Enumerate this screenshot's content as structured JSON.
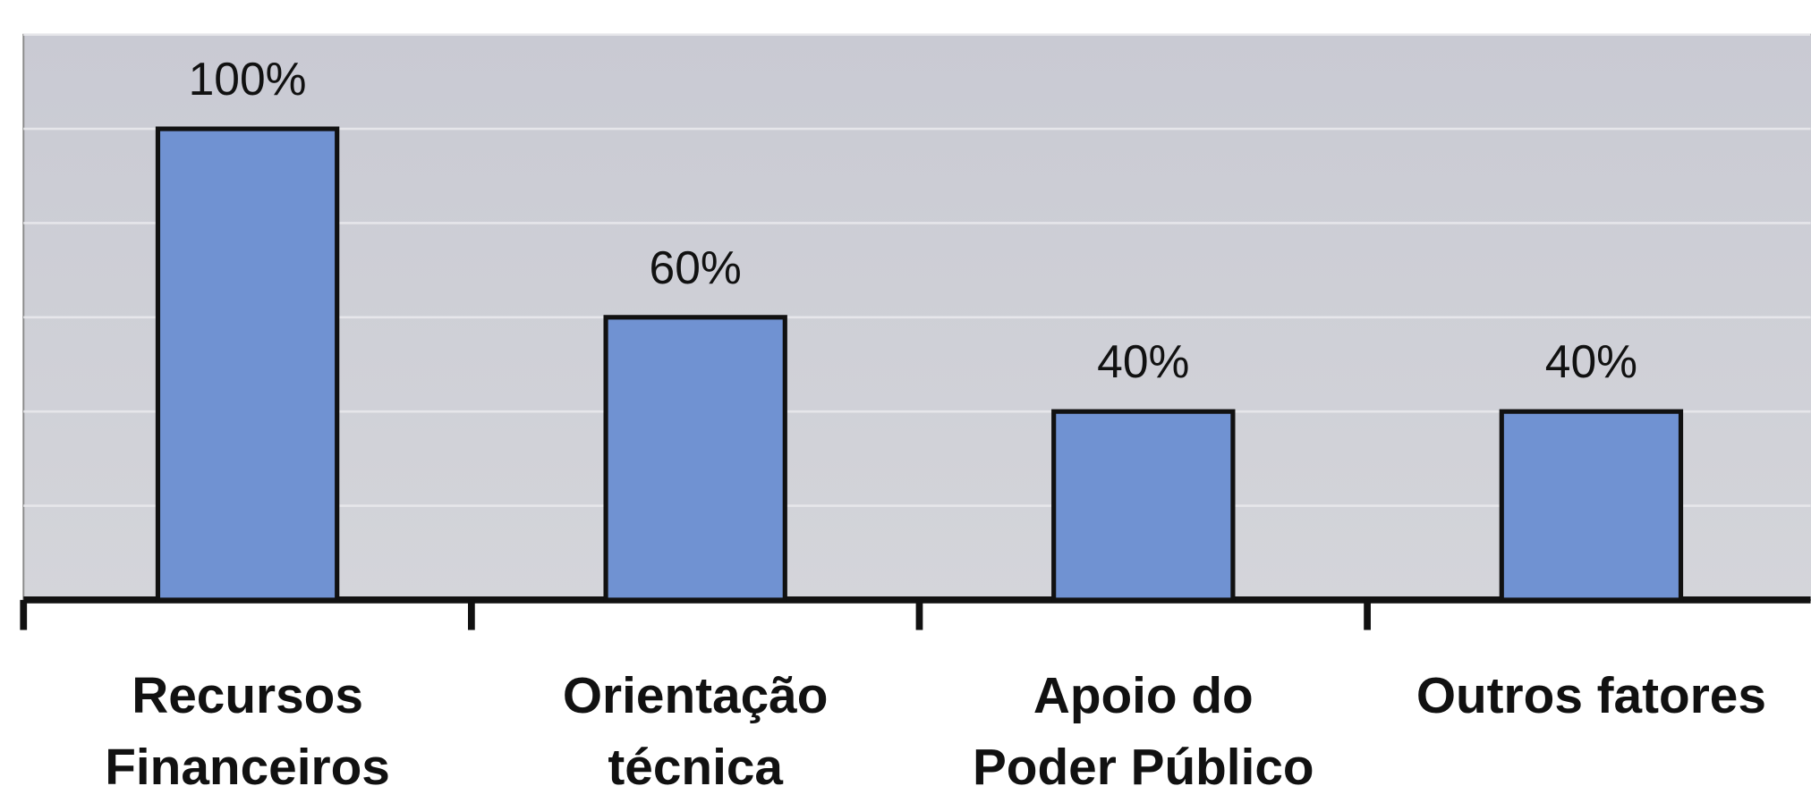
{
  "chart_data": {
    "type": "bar",
    "categories": [
      [
        "Recursos",
        "Financeiros"
      ],
      [
        "Orientação",
        "técnica"
      ],
      [
        "Apoio do",
        "Poder Público"
      ],
      [
        "Outros fatores"
      ]
    ],
    "values": [
      100,
      60,
      40,
      40
    ],
    "value_labels": [
      "100%",
      "60%",
      "40%",
      "40%"
    ],
    "color": "#7092d2",
    "ylim": [
      0,
      120
    ],
    "yticks": [
      0,
      20,
      40,
      60,
      80,
      100,
      120
    ],
    "grid": true
  }
}
